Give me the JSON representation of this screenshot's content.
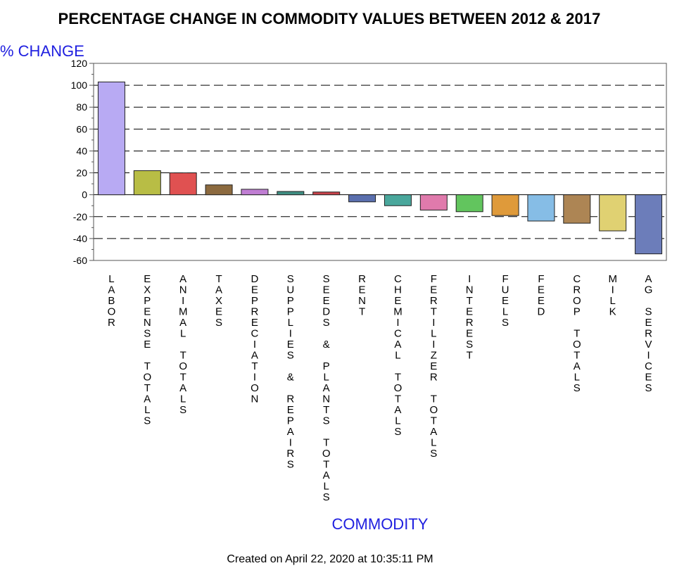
{
  "chart_data": {
    "type": "bar",
    "title": "PERCENTAGE CHANGE IN COMMODITY VALUES BETWEEN 2012 & 2017",
    "xlabel": "COMMODITY",
    "ylabel": "% CHANGE",
    "ylim": [
      -60,
      120
    ],
    "yticks": [
      -60,
      -40,
      -20,
      0,
      20,
      40,
      60,
      80,
      100,
      120
    ],
    "ytick_labels": [
      "-60",
      "-40",
      "-20",
      "0",
      "20",
      "40",
      "60",
      "80",
      "100",
      "120"
    ],
    "grid": "dashed horizontal",
    "categories": [
      "LABOR",
      "EXPENSE TOTALS",
      "ANIMAL TOTALS",
      "TAXES",
      "DEPRECIATION",
      "SUPPLIES & REPAIRS",
      "SEEDS & PLANTS TOTALS",
      "RENT",
      "CHEMICAL TOTALS",
      "FERTILIZER TOTALS",
      "INTEREST",
      "FUELS",
      "FEED",
      "CROP TOTALS",
      "MILK",
      "AG SERVICES"
    ],
    "values": [
      103,
      22,
      20,
      9,
      5,
      3,
      2.5,
      -6.5,
      -10,
      -14,
      -15.5,
      -19,
      -24,
      -26,
      -33,
      -54
    ],
    "colors": [
      "#b8aaf3",
      "#b8bd45",
      "#e05151",
      "#8c6a3f",
      "#c07ed3",
      "#3f8f83",
      "#c9434a",
      "#5a6fae",
      "#4aa79c",
      "#e07aac",
      "#62c55e",
      "#df9a3a",
      "#86bde6",
      "#ad8554",
      "#e0d172",
      "#6c7dba"
    ]
  },
  "footer": "Created on April 22, 2020 at 10:35:11 PM"
}
